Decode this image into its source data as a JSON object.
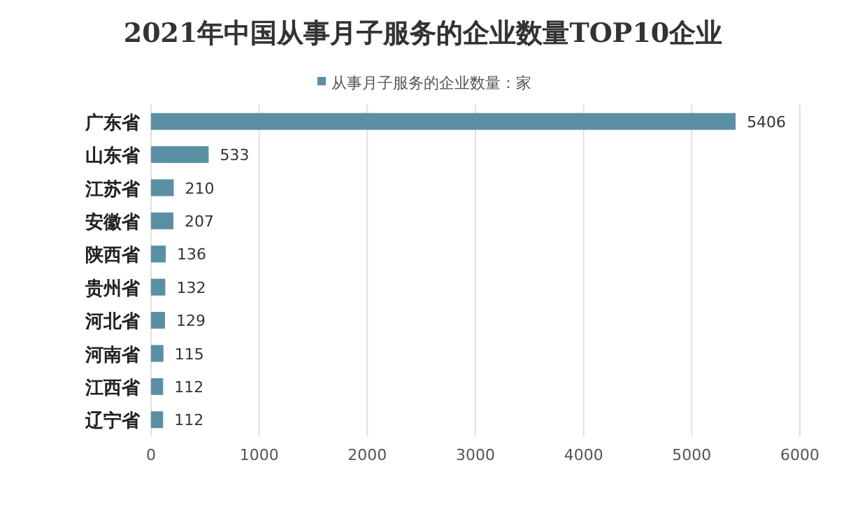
{
  "chart_data": {
    "type": "bar",
    "orientation": "horizontal",
    "title": "2021年中国从事月子服务的企业数量TOP10企业",
    "categories": [
      "广东省",
      "山东省",
      "江苏省",
      "安徽省",
      "陕西省",
      "贵州省",
      "河北省",
      "河南省",
      "江西省",
      "辽宁省"
    ],
    "series": [
      {
        "name": "从事月子服务的企业数量：家",
        "color": "#5b8fa3",
        "values": [
          5406,
          533,
          210,
          207,
          136,
          132,
          129,
          115,
          112,
          112
        ]
      }
    ],
    "xlim": [
      0,
      6000
    ],
    "xticks": [
      0,
      1000,
      2000,
      3000,
      4000,
      5000,
      6000
    ],
    "data_labels": true,
    "grid": "x",
    "legend": "top"
  }
}
